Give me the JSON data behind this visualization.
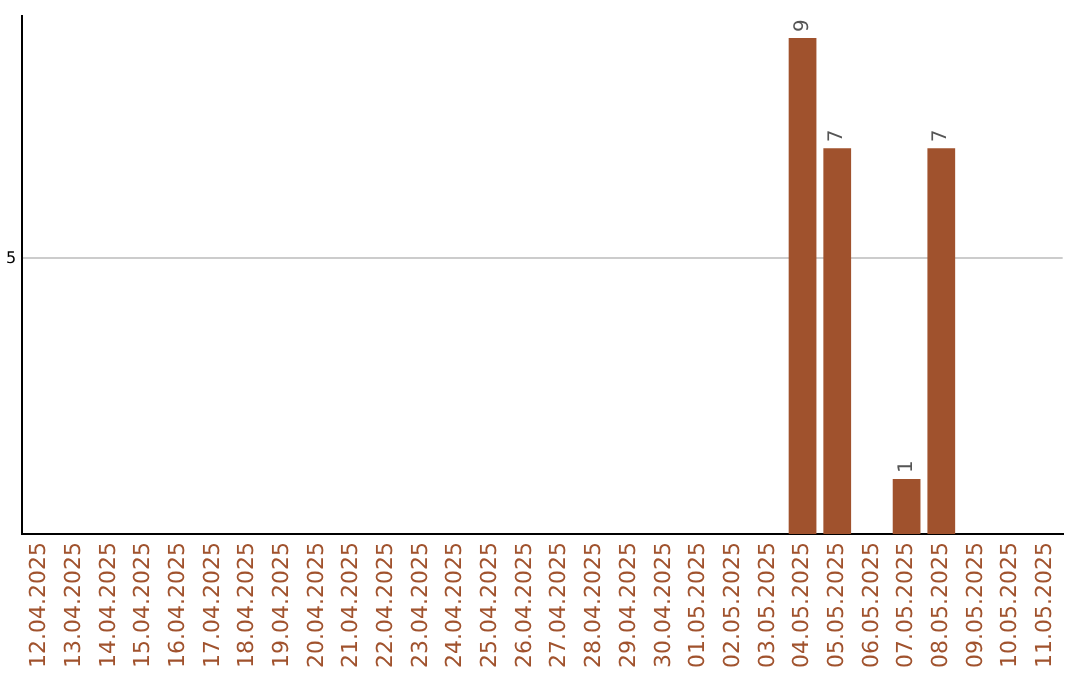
{
  "chart_data": {
    "type": "bar",
    "categories": [
      "12.04.2025",
      "13.04.2025",
      "14.04.2025",
      "15.04.2025",
      "16.04.2025",
      "17.04.2025",
      "18.04.2025",
      "19.04.2025",
      "20.04.2025",
      "21.04.2025",
      "22.04.2025",
      "23.04.2025",
      "24.04.2025",
      "25.04.2025",
      "26.04.2025",
      "27.04.2025",
      "28.04.2025",
      "29.04.2025",
      "30.04.2025",
      "01.05.2025",
      "02.05.2025",
      "03.05.2025",
      "04.05.2025",
      "05.05.2025",
      "06.05.2025",
      "07.05.2025",
      "08.05.2025",
      "09.05.2025",
      "10.05.2025",
      "11.05.2025"
    ],
    "values": [
      null,
      null,
      null,
      null,
      null,
      null,
      null,
      null,
      null,
      null,
      null,
      null,
      null,
      null,
      null,
      null,
      null,
      null,
      null,
      null,
      null,
      null,
      9,
      7,
      null,
      1,
      7,
      null,
      null,
      null
    ],
    "color": "#a0522d",
    "ylim": [
      0,
      9.4
    ],
    "yticks": [
      5
    ],
    "grid": "y",
    "data_labels": true,
    "legend": false
  }
}
